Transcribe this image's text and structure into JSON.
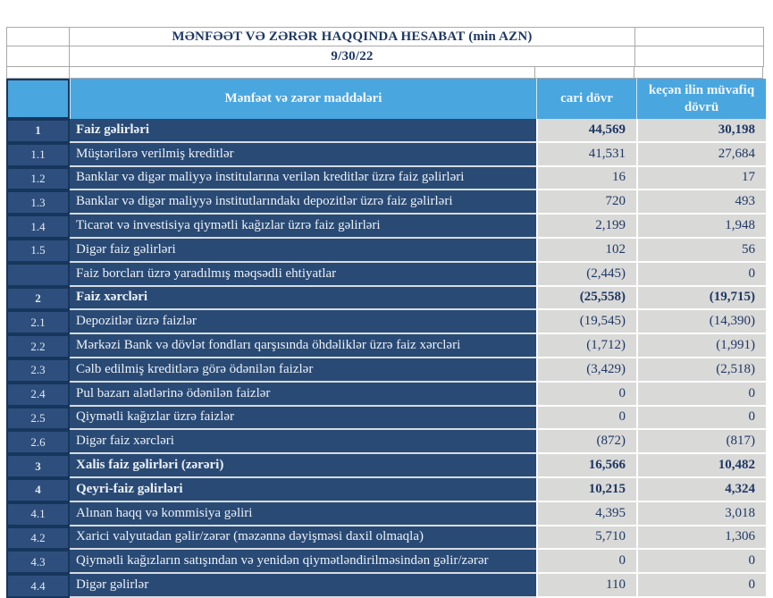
{
  "report": {
    "title": "MƏNFƏƏT VƏ ZƏRƏR HAQQINDA HESABAT (min AZN)",
    "date": "9/30/22"
  },
  "columns": {
    "items": "Mənfəət və zərər maddələri",
    "current": "cari dövr",
    "previous": "keçən ilin müvafiq dövrü"
  },
  "colors": {
    "header_blue": "#49a6df",
    "row_navy": "#294a75",
    "num_col_navy": "#2e4f7d",
    "dark_border_navy": "#16365c",
    "value_cell_gray": "#d9d9d8",
    "value_text_navy": "#1f3864"
  },
  "rows": [
    {
      "num": "1",
      "label": "Faiz  gəlirləri",
      "current": "44,569",
      "previous": "30,198",
      "bold": true
    },
    {
      "num": "1.1",
      "label": "Müştərilərə verilmiş kreditlər",
      "current": "41,531",
      "previous": "27,684",
      "bold": false
    },
    {
      "num": "1.2",
      "label": "Banklar və digər maliyyə institularına verilən kreditlər üzrə faiz gəlirləri",
      "current": "16",
      "previous": "17",
      "bold": false
    },
    {
      "num": "1.3",
      "label": "Banklar və digər maliyyə institutlarındakı depozitlər üzrə faiz gəlirləri",
      "current": "720",
      "previous": "493",
      "bold": false
    },
    {
      "num": "1.4",
      "label": "Ticarət və investisiya qiymətli kağızlar üzrə faiz gəlirləri",
      "current": "2,199",
      "previous": "1,948",
      "bold": false
    },
    {
      "num": "1.5",
      "label": "Digər faiz gəlirləri",
      "current": "102",
      "previous": "56",
      "bold": false
    },
    {
      "num": "",
      "label": "Faiz borcları üzrə yaradılmış məqsədli ehtiyatlar",
      "current": "(2,445)",
      "previous": "0",
      "bold": false
    },
    {
      "num": "2",
      "label": "Faiz xərcləri",
      "current": "(25,558)",
      "previous": "(19,715)",
      "bold": true
    },
    {
      "num": "2.1",
      "label": "Depozitlər üzrə faizlər",
      "current": "(19,545)",
      "previous": "(14,390)",
      "bold": false
    },
    {
      "num": "2.2",
      "label": "Mərkəzi Bank və dövlət fondları qarşısında öhdəliklər üzrə faiz xərcləri",
      "current": "(1,712)",
      "previous": "(1,991)",
      "bold": false
    },
    {
      "num": "2.3",
      "label": "Cəlb edilmiş kreditlərə görə ödənilən faizlər",
      "current": "(3,429)",
      "previous": "(2,518)",
      "bold": false
    },
    {
      "num": "2.4",
      "label": "Pul bazarı alətlərinə ödənilən faizlər",
      "current": "0",
      "previous": "0",
      "bold": false
    },
    {
      "num": "2.5",
      "label": "Qiymətli kağızlar üzrə faizlər",
      "current": "0",
      "previous": "0",
      "bold": false
    },
    {
      "num": "2.6",
      "label": "Digər faiz xərcləri",
      "current": "(872)",
      "previous": "(817)",
      "bold": false
    },
    {
      "num": "3",
      "label": "Xalis faiz gəlirləri (zərəri)",
      "current": "16,566",
      "previous": "10,482",
      "bold": true
    },
    {
      "num": "4",
      "label": "Qeyri-faiz gəlirləri",
      "current": "10,215",
      "previous": "4,324",
      "bold": true
    },
    {
      "num": "4.1",
      "label": "Alınan haqq və kommisiya gəliri",
      "current": "4,395",
      "previous": "3,018",
      "bold": false
    },
    {
      "num": "4.2",
      "label": "Xarici valyutadan gəlir/zərər (məzənnə dəyişməsi daxil olmaqla)",
      "current": "5,710",
      "previous": "1,306",
      "bold": false
    },
    {
      "num": "4.3",
      "label": "Qiymətli kağızların satışından və yenidən qiymətləndirilməsindən gəlir/zərər",
      "current": "0",
      "previous": "0",
      "bold": false
    },
    {
      "num": "4.4",
      "label": "Digər gəlirlər",
      "current": "110",
      "previous": "0",
      "bold": false
    }
  ]
}
